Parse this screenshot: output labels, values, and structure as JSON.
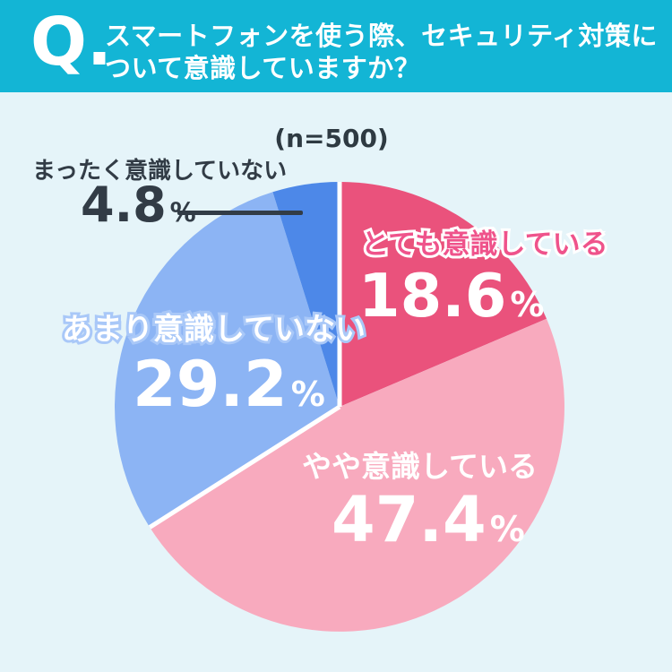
{
  "header": {
    "q_mark": "Q.",
    "question_line1": "スマートフォンを使う際、セキュリティ対策に",
    "question_line2": "ついて意識していますか？",
    "bg_color": "#13b5d5"
  },
  "sample_size_label": "(n=500)",
  "colors": {
    "background": "#e5f4f9",
    "header_cyan": "#13b5d5",
    "dark_text": "#323c46",
    "very_label_pink": "#ef538b",
    "notmuch_outline_blue": "#a9c8f8",
    "separator_white": "#ffffff"
  },
  "chart_data": {
    "type": "pie",
    "title": "スマートフォンを使う際、セキュリティ対策について意識していますか？",
    "sample_size_text": "(n=500)",
    "start_angle_deg": 0,
    "direction": "clockwise",
    "legend_position": "on-chart",
    "slices": [
      {
        "label": "とても意識している",
        "value": 18.6,
        "unit": "%",
        "color": "#ea527c"
      },
      {
        "label": "やや意識している",
        "value": 47.4,
        "unit": "%",
        "color": "#f8aabe"
      },
      {
        "label": "あまり意識していない",
        "value": 29.2,
        "unit": "%",
        "color": "#8cb4f4"
      },
      {
        "label": "まったく意識していない",
        "value": 4.8,
        "unit": "%",
        "color": "#4d88e8"
      }
    ],
    "group_gap_after_indices": [
      1,
      3
    ]
  }
}
